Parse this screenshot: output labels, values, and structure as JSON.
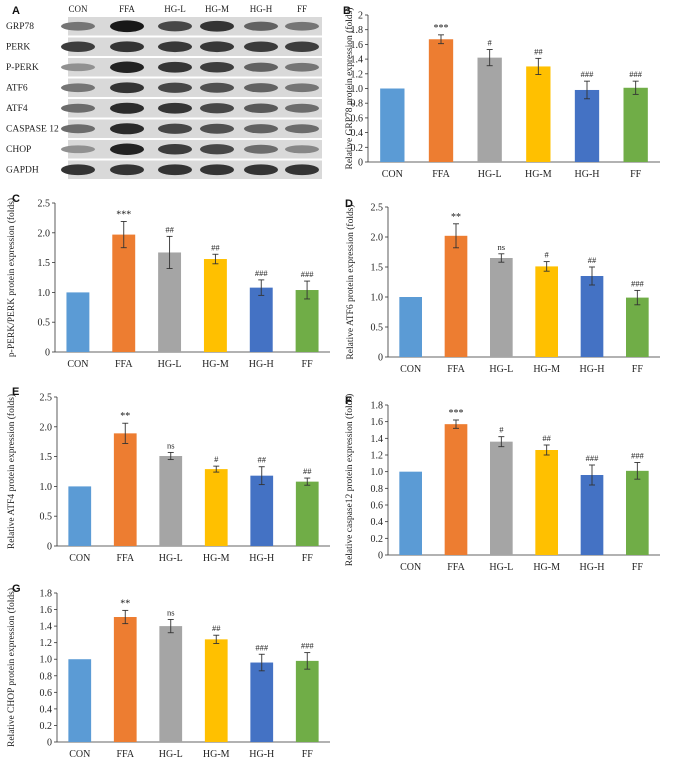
{
  "groups": [
    "CON",
    "FFA",
    "HG-L",
    "HG-M",
    "HG-H",
    "FF"
  ],
  "colors": [
    "#5b9bd5",
    "#ed7d31",
    "#a5a5a5",
    "#ffc000",
    "#4472c4",
    "#70ad47"
  ],
  "blot": {
    "panel_label": "A",
    "lane_labels": [
      "CON",
      "FFA",
      "HG-L",
      "HG-M",
      "HG-H",
      "FF"
    ],
    "rows": [
      {
        "label": "GRP78",
        "intensity": [
          0.45,
          0.95,
          0.7,
          0.8,
          0.55,
          0.45
        ]
      },
      {
        "label": "PERK",
        "intensity": [
          0.75,
          0.8,
          0.78,
          0.78,
          0.76,
          0.75
        ]
      },
      {
        "label": "P-PERK",
        "intensity": [
          0.3,
          0.9,
          0.8,
          0.75,
          0.55,
          0.45
        ]
      },
      {
        "label": "ATF6",
        "intensity": [
          0.45,
          0.8,
          0.7,
          0.65,
          0.55,
          0.45
        ]
      },
      {
        "label": "ATF4",
        "intensity": [
          0.5,
          0.85,
          0.8,
          0.7,
          0.6,
          0.5
        ]
      },
      {
        "label": "CASPASE 12",
        "intensity": [
          0.5,
          0.85,
          0.7,
          0.65,
          0.55,
          0.5
        ]
      },
      {
        "label": "CHOP",
        "intensity": [
          0.3,
          0.9,
          0.75,
          0.7,
          0.5,
          0.35
        ]
      },
      {
        "label": "GAPDH",
        "intensity": [
          0.8,
          0.8,
          0.8,
          0.8,
          0.8,
          0.8
        ]
      }
    ]
  },
  "chart_data": [
    {
      "panel": "B",
      "type": "bar",
      "categories": [
        "CON",
        "FFA",
        "HG-L",
        "HG-M",
        "HG-H",
        "FF"
      ],
      "values": [
        1.0,
        1.67,
        1.42,
        1.3,
        0.98,
        1.01
      ],
      "errors": [
        0.0,
        0.06,
        0.11,
        0.11,
        0.12,
        0.09
      ],
      "significance": [
        "",
        "***",
        "#",
        "##",
        "###",
        "###"
      ],
      "ylabel": "Relative GRP78 protein expression (folds)",
      "ylim": [
        0,
        2
      ],
      "yticks": [
        "0",
        "0.2",
        "0.4",
        "0.6",
        "0.8",
        "1.0",
        "1.2",
        "1.4",
        "1.6",
        "1.8",
        "2"
      ]
    },
    {
      "panel": "C",
      "type": "bar",
      "categories": [
        "CON",
        "FFA",
        "HG-L",
        "HG-M",
        "HG-H",
        "FF"
      ],
      "values": [
        1.0,
        1.97,
        1.67,
        1.56,
        1.08,
        1.04
      ],
      "errors": [
        0.0,
        0.22,
        0.27,
        0.08,
        0.13,
        0.15
      ],
      "significance": [
        "",
        "***",
        "##",
        "##",
        "###",
        "###"
      ],
      "ylabel": "p-PERK/PERK protein expression (folds)",
      "ylim": [
        0,
        2.5
      ],
      "yticks": [
        "0",
        "0.5",
        "1.0",
        "1.5",
        "2.0",
        "2.5"
      ]
    },
    {
      "panel": "D",
      "type": "bar",
      "categories": [
        "CON",
        "FFA",
        "HG-L",
        "HG-M",
        "HG-H",
        "FF"
      ],
      "values": [
        1.0,
        2.02,
        1.65,
        1.51,
        1.35,
        0.99
      ],
      "errors": [
        0.0,
        0.2,
        0.07,
        0.08,
        0.15,
        0.12
      ],
      "significance": [
        "",
        "**",
        "ns",
        "#",
        "##",
        "###"
      ],
      "ylabel": "Relative ATF6 protein expression (folds)",
      "ylim": [
        0,
        2.5
      ],
      "yticks": [
        "0",
        "0.5",
        "1.0",
        "1.5",
        "2.0",
        "2.5"
      ]
    },
    {
      "panel": "E",
      "type": "bar",
      "categories": [
        "CON",
        "FFA",
        "HG-L",
        "HG-M",
        "HG-H",
        "FF"
      ],
      "values": [
        1.0,
        1.89,
        1.51,
        1.29,
        1.18,
        1.08
      ],
      "errors": [
        0.0,
        0.17,
        0.06,
        0.05,
        0.15,
        0.06
      ],
      "significance": [
        "",
        "**",
        "ns",
        "#",
        "##",
        "##"
      ],
      "ylabel": "Relative ATF4 protein expression (folds)",
      "ylim": [
        0,
        2.5
      ],
      "yticks": [
        "0",
        "0.5",
        "1.0",
        "1.5",
        "2.0",
        "2.5"
      ]
    },
    {
      "panel": "F",
      "type": "bar",
      "categories": [
        "CON",
        "FFA",
        "HG-L",
        "HG-M",
        "HG-H",
        "FF"
      ],
      "values": [
        1.0,
        1.57,
        1.36,
        1.26,
        0.96,
        1.01
      ],
      "errors": [
        0.0,
        0.05,
        0.06,
        0.06,
        0.12,
        0.1
      ],
      "significance": [
        "",
        "***",
        "#",
        "##",
        "###",
        "###"
      ],
      "ylabel": "Relative caspase12 protein expression (folds)",
      "ylim": [
        0,
        1.8
      ],
      "yticks": [
        "0",
        "0.2",
        "0.4",
        "0.6",
        "0.8",
        "1.0",
        "1.2",
        "1.4",
        "1.6",
        "1.8"
      ]
    },
    {
      "panel": "G",
      "type": "bar",
      "categories": [
        "CON",
        "FFA",
        "HG-L",
        "HG-M",
        "HG-H",
        "FF"
      ],
      "values": [
        1.0,
        1.51,
        1.4,
        1.24,
        0.96,
        0.98
      ],
      "errors": [
        0.0,
        0.08,
        0.08,
        0.05,
        0.1,
        0.1
      ],
      "significance": [
        "",
        "**",
        "ns",
        "##",
        "###",
        "###"
      ],
      "ylabel": "Relative CHOP protein expression (folds)",
      "ylim": [
        0,
        1.8
      ],
      "yticks": [
        "0",
        "0.2",
        "0.4",
        "0.6",
        "0.8",
        "1.0",
        "1.2",
        "1.4",
        "1.6",
        "1.8"
      ]
    }
  ]
}
